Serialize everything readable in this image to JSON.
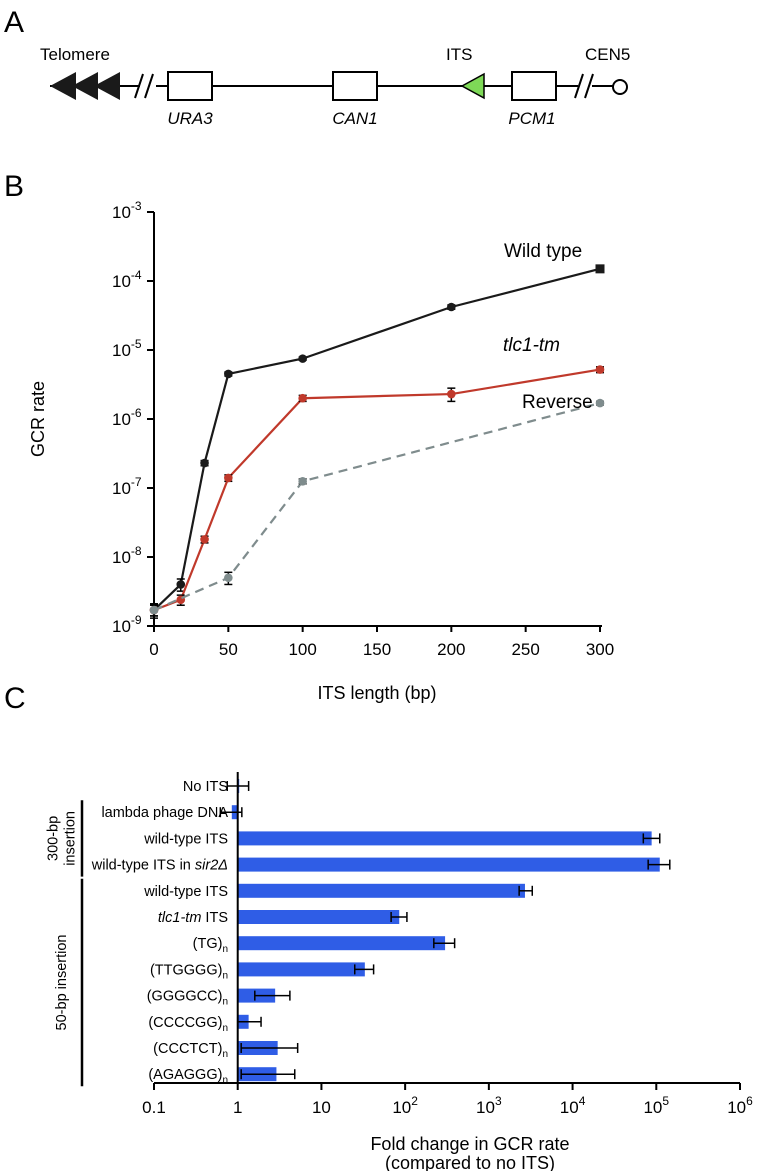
{
  "panels": {
    "a": {
      "letter": "A"
    },
    "b": {
      "letter": "B"
    },
    "c": {
      "letter": "C"
    }
  },
  "diagram": {
    "telomere": "Telomere",
    "its": "ITS",
    "cen": "CEN5",
    "genes": [
      "URA3",
      "CAN1",
      "PCM1"
    ],
    "colors": {
      "its_triangle": "#7ed957",
      "telomere": "#1a1a1a"
    }
  },
  "chart_data": [
    {
      "type": "line",
      "ylabel": "GCR rate",
      "xlabel": "ITS length (bp)",
      "xlim": [
        0,
        300
      ],
      "ylim_log10": [
        -9,
        -3
      ],
      "x_ticks": [
        "0",
        "50",
        "100",
        "150",
        "200",
        "250",
        "300"
      ],
      "y_tick_exponents": [
        "-9",
        "-8",
        "-7",
        "-6",
        "-5",
        "-4",
        "-3"
      ],
      "y_tick_base": "10",
      "series": [
        {
          "name": "Wild type",
          "color": "#1a1a1a",
          "dashed": false,
          "points": [
            {
              "x": 0,
              "y": 1.7e-09,
              "err": 4e-10
            },
            {
              "x": 18,
              "y": 4e-09,
              "err": 8e-10
            },
            {
              "x": 34,
              "y": 2.3e-07,
              "err": 2e-08
            },
            {
              "x": 50,
              "y": 4.5e-06,
              "err": 3e-07
            },
            {
              "x": 100,
              "y": 7.5e-06,
              "err": 4e-07
            },
            {
              "x": 200,
              "y": 4.2e-05,
              "err": 3e-06
            },
            {
              "x": 300,
              "y": 0.00015,
              "err": 1e-05
            }
          ]
        },
        {
          "name": "tlc1-tm",
          "color": "#c0392b",
          "dashed": false,
          "points": [
            {
              "x": 0,
              "y": 1.7e-09,
              "err": 3e-10
            },
            {
              "x": 18,
              "y": 2.4e-09,
              "err": 4e-10
            },
            {
              "x": 34,
              "y": 1.8e-08,
              "err": 2e-09
            },
            {
              "x": 50,
              "y": 1.4e-07,
              "err": 1.5e-08
            },
            {
              "x": 100,
              "y": 2e-06,
              "err": 2e-07
            },
            {
              "x": 200,
              "y": 2.3e-06,
              "err": 5e-07
            },
            {
              "x": 300,
              "y": 5.2e-06,
              "err": 5e-07
            }
          ]
        },
        {
          "name": "Reverse",
          "color": "#7f8c8d",
          "dashed": true,
          "points": [
            {
              "x": 0,
              "y": 1.7e-09,
              "err": 3e-10
            },
            {
              "x": 50,
              "y": 5e-09,
              "err": 1e-09
            },
            {
              "x": 100,
              "y": 1.25e-07,
              "err": 1e-08
            },
            {
              "x": 300,
              "y": 1.7e-06,
              "err": 1e-07
            }
          ]
        }
      ]
    },
    {
      "type": "bar",
      "orientation": "horizontal",
      "xlabel_line1": "Fold change in GCR rate",
      "xlabel_line2": "(compared to no ITS)",
      "xlim_log10": [
        -1,
        6
      ],
      "x_ticks": [
        {
          "log": -1,
          "label": "0.1",
          "base": "",
          "exp": ""
        },
        {
          "log": 0,
          "label": "1",
          "base": "",
          "exp": ""
        },
        {
          "log": 1,
          "label": "10",
          "base": "",
          "exp": ""
        },
        {
          "log": 2,
          "label": "",
          "base": "10",
          "exp": "2"
        },
        {
          "log": 3,
          "label": "",
          "base": "10",
          "exp": "3"
        },
        {
          "log": 4,
          "label": "",
          "base": "10",
          "exp": "4"
        },
        {
          "log": 5,
          "label": "",
          "base": "10",
          "exp": "5"
        },
        {
          "log": 6,
          "label": "",
          "base": "10",
          "exp": "6"
        }
      ],
      "bar_color": "#2f5de6",
      "groups": [
        {
          "label": "300-bp insertion",
          "from": 1,
          "to": 3
        },
        {
          "label": "50-bp insertion",
          "from": 4,
          "to": 11
        }
      ],
      "categories": [
        {
          "label": "No ITS",
          "italic_prefix": "",
          "italic_suffix": "",
          "sub": "",
          "value": 1.0,
          "err_low": 0.75,
          "err_high": 1.35
        },
        {
          "label": "lambda phage DNA",
          "italic_prefix": "",
          "italic_suffix": "",
          "sub": "",
          "value": 0.85,
          "err_low": 0.62,
          "err_high": 1.12
        },
        {
          "label": "wild-type ITS",
          "italic_prefix": "",
          "italic_suffix": "",
          "sub": "",
          "value": 88000,
          "err_low": 70000,
          "err_high": 110000
        },
        {
          "label": "wild-type ITS in ",
          "italic_prefix": "",
          "italic_suffix": "sir2Δ",
          "sub": "",
          "value": 110000,
          "err_low": 80000,
          "err_high": 145000
        },
        {
          "label": "wild-type ITS",
          "italic_prefix": "",
          "italic_suffix": "",
          "sub": "",
          "value": 2700,
          "err_low": 2300,
          "err_high": 3300
        },
        {
          "label": " ITS",
          "italic_prefix": "tlc1-tm",
          "italic_suffix": "",
          "sub": "",
          "value": 85,
          "err_low": 68,
          "err_high": 105
        },
        {
          "label": "(TG)",
          "italic_prefix": "",
          "italic_suffix": "",
          "sub": "n",
          "value": 300,
          "err_low": 220,
          "err_high": 390
        },
        {
          "label": "(TTGGGG)",
          "italic_prefix": "",
          "italic_suffix": "",
          "sub": "n",
          "value": 33,
          "err_low": 25,
          "err_high": 42
        },
        {
          "label": "(GGGGCC)",
          "italic_prefix": "",
          "italic_suffix": "",
          "sub": "n",
          "value": 2.8,
          "err_low": 1.6,
          "err_high": 4.2
        },
        {
          "label": "(CCCCGG)",
          "italic_prefix": "",
          "italic_suffix": "",
          "sub": "n",
          "value": 1.35,
          "err_low": 1.0,
          "err_high": 1.9
        },
        {
          "label": "(CCCTCT)",
          "italic_prefix": "",
          "italic_suffix": "",
          "sub": "n",
          "value": 3.0,
          "err_low": 1.1,
          "err_high": 5.2
        },
        {
          "label": "(AGAGGG)",
          "italic_prefix": "",
          "italic_suffix": "",
          "sub": "n",
          "value": 2.9,
          "err_low": 1.1,
          "err_high": 4.8
        }
      ]
    }
  ]
}
